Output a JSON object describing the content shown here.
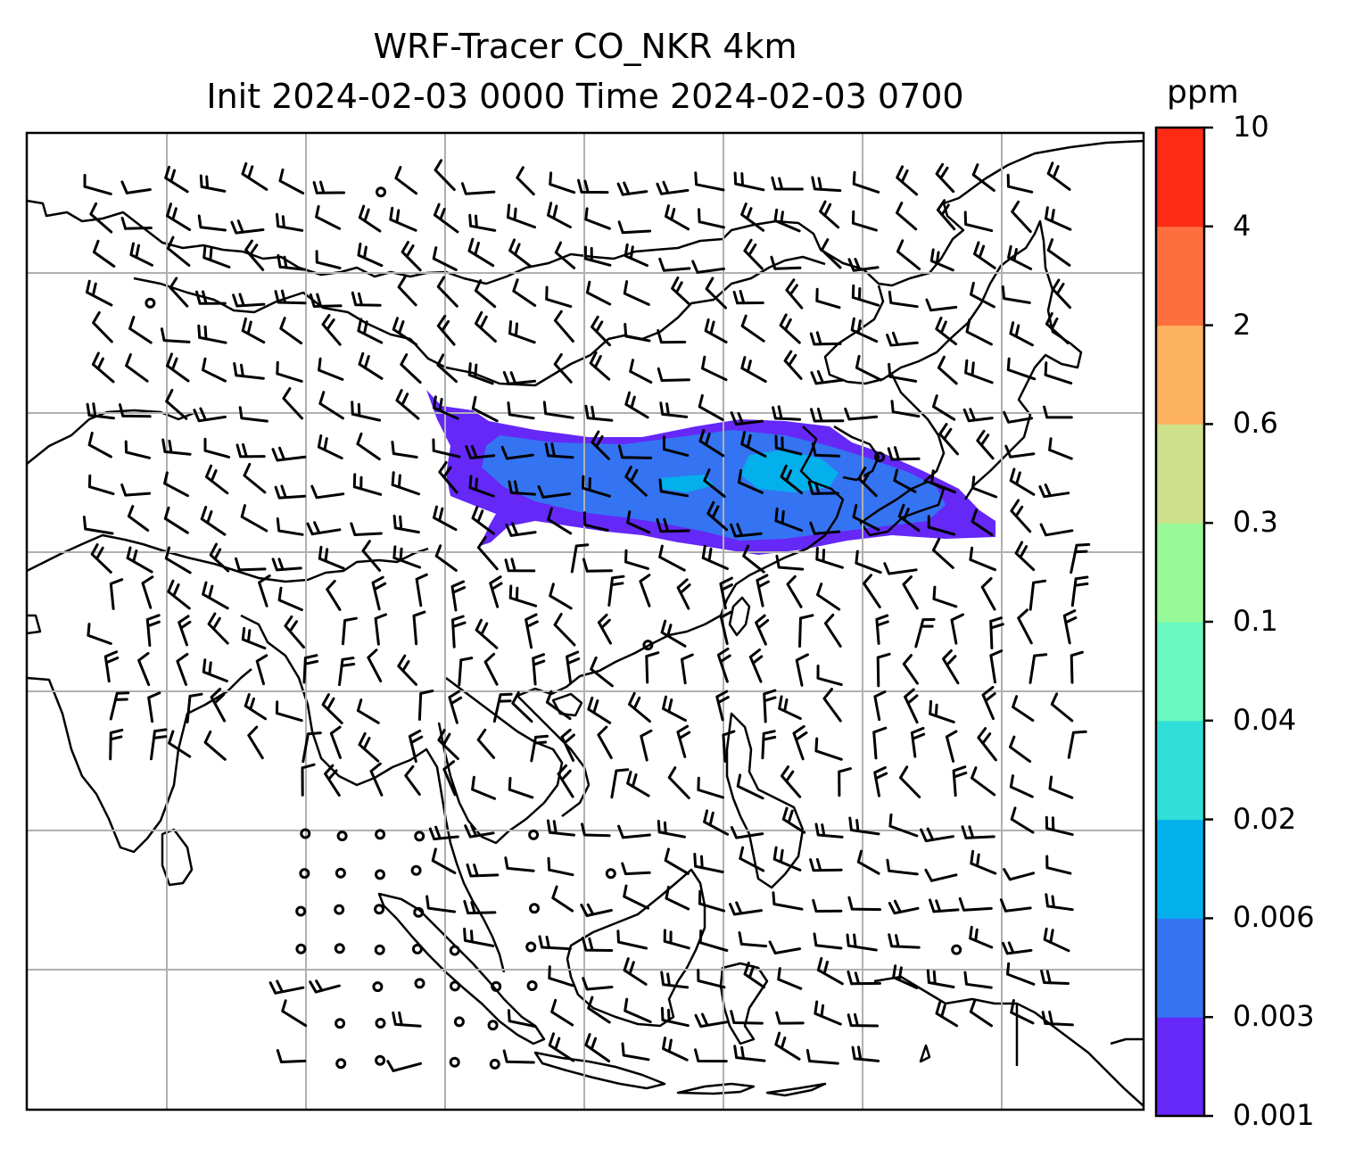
{
  "title": {
    "line1": "WRF-Tracer CO_NKR 4km",
    "line2": "Init 2024-02-03 0000 Time 2024-02-03 0700"
  },
  "colorbar": {
    "unit": "ppm",
    "levels": [
      "0.001",
      "0.003",
      "0.006",
      "0.02",
      "0.04",
      "0.1",
      "0.3",
      "0.6",
      "2",
      "4",
      "10"
    ],
    "colors": [
      "#6528f7",
      "#3474f2",
      "#04b0ec",
      "#30dfd7",
      "#69f8bf",
      "#98f998",
      "#cee089",
      "#fdb25f",
      "#fe6f3f",
      "#fe2b17"
    ]
  },
  "map": {
    "gridlines": true,
    "coastline_color": "#000000",
    "gridline_color": "#b0b0b0",
    "plume_colors": [
      "#6528f7",
      "#3474f2",
      "#04b0ec"
    ]
  }
}
